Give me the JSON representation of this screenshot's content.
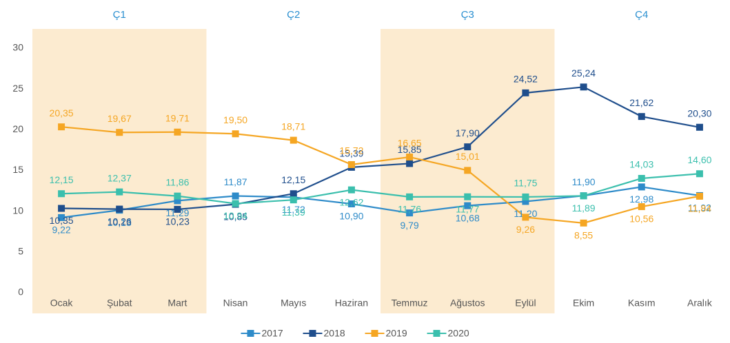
{
  "chart_data": {
    "type": "line",
    "quarters": [
      {
        "label": "Ç1",
        "shaded": true
      },
      {
        "label": "Ç2",
        "shaded": false
      },
      {
        "label": "Ç3",
        "shaded": true
      },
      {
        "label": "Ç4",
        "shaded": false
      }
    ],
    "shade_color": "#fcebd0",
    "categories": [
      "Ocak",
      "Şubat",
      "Mart",
      "Nisan",
      "Mayıs",
      "Haziran",
      "Temmuz",
      "Ağustos",
      "Eylül",
      "Ekim",
      "Kasım",
      "Aralık"
    ],
    "series": [
      {
        "name": "2017",
        "color": "#2e8bc9",
        "values": [
          9.22,
          10.13,
          11.29,
          11.87,
          11.72,
          10.9,
          9.79,
          10.68,
          11.2,
          11.9,
          12.98,
          11.92
        ],
        "value_labels": [
          "9,22",
          "10,13",
          "11,29",
          "11,87",
          "11,72",
          "10,90",
          "9,79",
          "10,68",
          "11,20",
          "11,90",
          "12,98",
          "11,92"
        ]
      },
      {
        "name": "2018",
        "color": "#1f4e8c",
        "values": [
          10.35,
          10.26,
          10.23,
          10.85,
          12.15,
          15.39,
          15.85,
          17.9,
          24.52,
          25.24,
          21.62,
          20.3
        ],
        "value_labels": [
          "10,35",
          "10,26",
          "10,23",
          "10,85",
          "12,15",
          "15,39",
          "15,85",
          "17,90",
          "24,52",
          "25,24",
          "21,62",
          "20,30"
        ]
      },
      {
        "name": "2019",
        "color": "#f5a623",
        "values": [
          20.35,
          19.67,
          19.71,
          19.5,
          18.71,
          15.72,
          16.65,
          15.01,
          9.26,
          8.55,
          10.56,
          11.84
        ],
        "value_labels": [
          "20,35",
          "19,67",
          "19,71",
          "19,50",
          "18,71",
          "15,72",
          "16,65",
          "15,01",
          "9,26",
          "8,55",
          "10,56",
          "11,84"
        ]
      },
      {
        "name": "2020",
        "color": "#3bbfad",
        "values": [
          12.15,
          12.37,
          11.86,
          10.94,
          11.39,
          12.62,
          11.76,
          11.77,
          11.75,
          11.89,
          14.03,
          14.6
        ],
        "value_labels": [
          "12,15",
          "12,37",
          "11,86",
          "10,94",
          "11,39",
          "12,62",
          "11,76",
          "11,77",
          "11,75",
          "11,89",
          "14,03",
          "14,60"
        ]
      }
    ],
    "ylim": [
      0,
      30
    ],
    "yticks": [
      0,
      5,
      10,
      15,
      20,
      25,
      30
    ],
    "grid": false,
    "legend": "bottom"
  }
}
